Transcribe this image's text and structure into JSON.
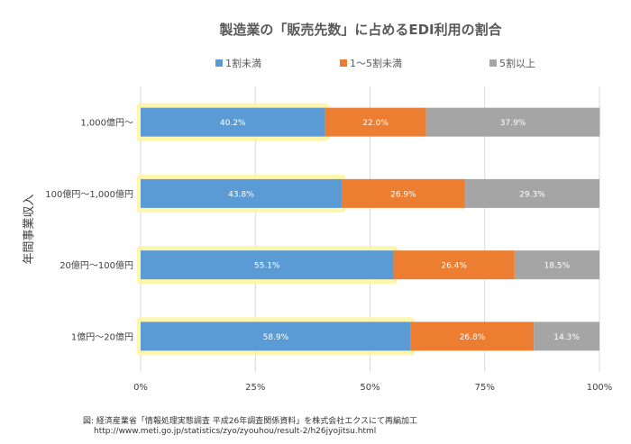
{
  "chart_data": {
    "type": "bar",
    "orientation": "horizontal",
    "stacked": true,
    "title": "製造業の「販売先数」に占めるEDI利用の割合",
    "ylabel": "年間事業収入",
    "xlabel": "",
    "x_ticks": [
      "0%",
      "25%",
      "50%",
      "75%",
      "100%"
    ],
    "xlim": [
      0,
      100
    ],
    "categories": [
      "1,000億円～",
      "100億円～1,000億円",
      "20億円～100億円",
      "1億円～20億円"
    ],
    "series": [
      {
        "name": "1割未満",
        "values": [
          40.2,
          43.8,
          55.1,
          58.9
        ],
        "labels": [
          "40.2%",
          "43.8%",
          "55.1%",
          "58.9%"
        ],
        "color": "#5b9bd5"
      },
      {
        "name": "1～5割未満",
        "values": [
          22.0,
          26.9,
          26.4,
          26.8
        ],
        "labels": [
          "22.0%",
          "26.9%",
          "26.4%",
          "26.8%"
        ],
        "color": "#ed7d31"
      },
      {
        "name": "5割以上",
        "values": [
          37.9,
          29.3,
          18.5,
          14.3
        ],
        "labels": [
          "37.9%",
          "29.3%",
          "18.5%",
          "14.3%"
        ],
        "color": "#a5a5a5"
      }
    ],
    "legend_position": "top",
    "grid": true,
    "highlight_color": "#fff59d"
  },
  "source": {
    "line1": "図: 経済産業省「情報処理実態調査 平成26年調査関係資料」を株式会社エクスにて再編加工",
    "line2": "http://www.meti.go.jp/statistics/zyo/zyouhou/result-2/h26jyojitsu.html"
  }
}
